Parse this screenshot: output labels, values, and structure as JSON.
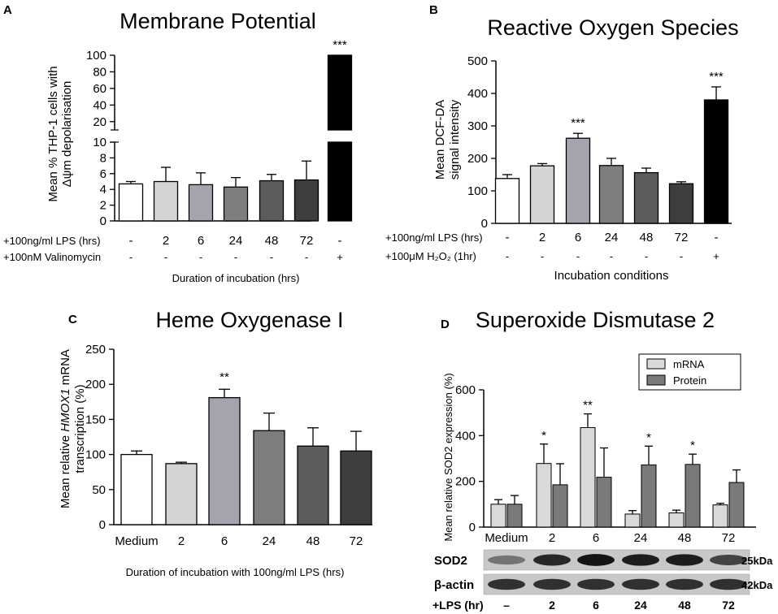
{
  "chart_data": [
    {
      "panel": "A",
      "type": "bar",
      "title": "Membrane Potential",
      "ylabel_line1": "Mean % THP-1 cells with",
      "ylabel_line2": "Δψm depolarisation",
      "xlabel": "Duration of incubation (hrs)",
      "axis_break": true,
      "ylim_lower": [
        0,
        10
      ],
      "ylim_upper": [
        10,
        100
      ],
      "yticks_lower": [
        "0",
        "2",
        "4",
        "6",
        "8",
        "10"
      ],
      "yticks_upper": [
        "20",
        "40",
        "60",
        "80",
        "100"
      ],
      "values": [
        4.7,
        5.0,
        4.6,
        4.3,
        5.1,
        5.2,
        100
      ],
      "errors": [
        0.3,
        1.8,
        1.5,
        1.2,
        0.8,
        2.4,
        0
      ],
      "colors": [
        "#ffffff",
        "#d4d4d4",
        "#a4a4ae",
        "#7e7e7e",
        "#5c5c5c",
        "#3e3e3e",
        "#000000"
      ],
      "significance": [
        "",
        "",
        "",
        "",
        "",
        "",
        "***"
      ],
      "condition_rows": [
        {
          "label": "+100ng/ml LPS (hrs)",
          "values": [
            "-",
            "2",
            "6",
            "24",
            "48",
            "72",
            "-"
          ]
        },
        {
          "label": "+100nM Valinomycin",
          "values": [
            "-",
            "-",
            "-",
            "-",
            "-",
            "-",
            "+"
          ]
        }
      ]
    },
    {
      "panel": "B",
      "type": "bar",
      "title": "Reactive Oxygen Species",
      "ylabel_line1": "Mean DCF-DA",
      "ylabel_line2": "signal intensity",
      "xlabel": "Incubation conditions",
      "ylim": [
        0,
        500
      ],
      "yticks": [
        "0",
        "100",
        "200",
        "300",
        "400",
        "500"
      ],
      "values": [
        138,
        177,
        262,
        178,
        156,
        122,
        380
      ],
      "errors": [
        12,
        7,
        15,
        22,
        14,
        6,
        40
      ],
      "colors": [
        "#ffffff",
        "#d4d4d4",
        "#a4a4ae",
        "#7e7e7e",
        "#5c5c5c",
        "#3e3e3e",
        "#000000"
      ],
      "significance": [
        "",
        "",
        "***",
        "",
        "",
        "",
        "***"
      ],
      "condition_rows": [
        {
          "label": "+100ng/ml LPS (hrs)",
          "values": [
            "-",
            "2",
            "6",
            "24",
            "48",
            "72",
            "-"
          ]
        },
        {
          "label": "+100μM H₂O₂ (1hr)",
          "values": [
            "-",
            "-",
            "-",
            "-",
            "-",
            "-",
            "+"
          ]
        }
      ]
    },
    {
      "panel": "C",
      "type": "bar",
      "title": "Heme Oxygenase  I",
      "ylabel_pre": "Mean relative ",
      "ylabel_italic": "HMOX1",
      "ylabel_post": " mRNA",
      "ylabel_line2": "transcription (%)",
      "xlabel": "Duration of incubation with 100ng/ml LPS (hrs)",
      "ylim": [
        0,
        250
      ],
      "yticks": [
        "0",
        "50",
        "100",
        "150",
        "200",
        "250"
      ],
      "categories": [
        "Medium",
        "2",
        "6",
        "24",
        "48",
        "72"
      ],
      "values": [
        100,
        87,
        181,
        134,
        112,
        105
      ],
      "errors": [
        5,
        2,
        12,
        25,
        26,
        28
      ],
      "colors": [
        "#ffffff",
        "#d4d4d4",
        "#a4a4ae",
        "#7e7e7e",
        "#5c5c5c",
        "#3e3e3e"
      ],
      "significance": [
        "",
        "",
        "**",
        "",
        "",
        ""
      ]
    },
    {
      "panel": "D",
      "type": "bar",
      "title": "Superoxide Dismutase 2",
      "ylabel": "Mean relative SOD2 expression (%)",
      "ylim": [
        0,
        600
      ],
      "yticks": [
        "0",
        "200",
        "400",
        "600"
      ],
      "categories": [
        "Medium",
        "2",
        "6",
        "24",
        "48",
        "72"
      ],
      "series": [
        {
          "name": "mRNA",
          "color": "#d9d9d9",
          "values": [
            100,
            278,
            435,
            57,
            62,
            97
          ],
          "errors": [
            20,
            85,
            60,
            15,
            12,
            7
          ],
          "significance": [
            "",
            "*",
            "**",
            "",
            "",
            ""
          ]
        },
        {
          "name": "Protein",
          "color": "#7a7a7a",
          "values": [
            100,
            185,
            218,
            272,
            274,
            195
          ],
          "errors": [
            38,
            92,
            128,
            82,
            45,
            55
          ],
          "significance": [
            "",
            "",
            "",
            "*",
            "*",
            ""
          ]
        }
      ],
      "blots": [
        {
          "label": "SOD2",
          "size": "25kDa",
          "intensity": [
            0.45,
            0.85,
            0.95,
            0.9,
            0.9,
            0.7
          ]
        },
        {
          "label": "β-actin",
          "size": "42kDa",
          "intensity": [
            0.8,
            0.8,
            0.8,
            0.8,
            0.8,
            0.8
          ]
        }
      ],
      "lps_row": {
        "label": "+LPS (hr)",
        "values": [
          "–",
          "2",
          "6",
          "24",
          "48",
          "72"
        ]
      }
    }
  ]
}
